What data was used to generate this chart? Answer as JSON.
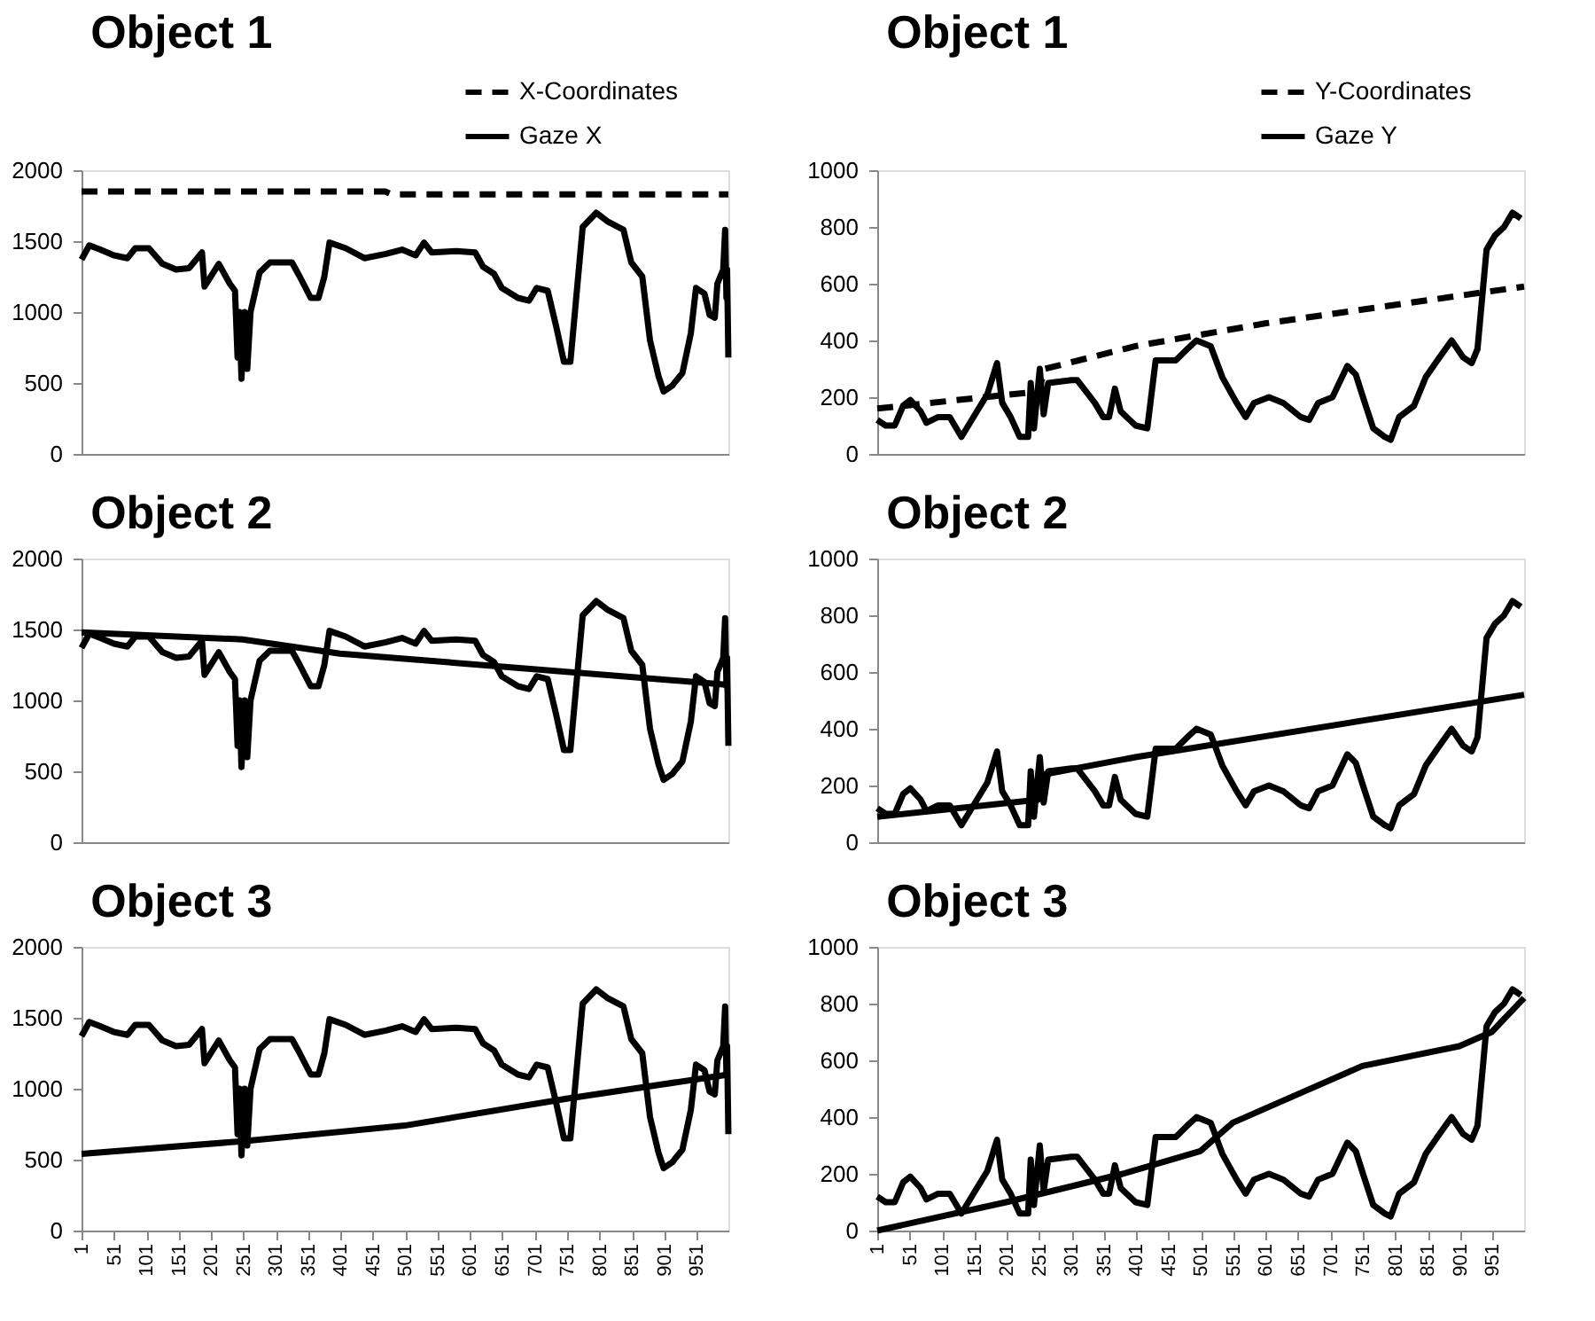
{
  "chart_data": [
    {
      "type": "line",
      "title": "Object 1",
      "xlim": [
        1,
        1000
      ],
      "xticks": [
        1,
        51,
        101,
        151,
        201,
        251,
        301,
        351,
        401,
        451,
        501,
        551,
        601,
        651,
        701,
        751,
        801,
        851,
        901,
        951
      ],
      "ylim": [
        0,
        2000
      ],
      "yticks": [
        0,
        500,
        1000,
        1500,
        2000
      ],
      "grid": false,
      "tick_labels": "y",
      "legend": "top right",
      "series": [
        {
          "name": "X-Coordinates",
          "color": "#000000",
          "line_style": "dashed",
          "x": [
            1,
            470,
            480,
            1000
          ],
          "values": [
            1850,
            1850,
            1830,
            1830
          ]
        },
        {
          "name": "Gaze X",
          "color": "#000000",
          "line_style": "solid",
          "x": [
            1,
            13,
            30,
            51,
            72,
            84,
            105,
            126,
            147,
            167,
            187,
            191,
            213,
            230,
            238,
            242,
            245,
            248,
            253,
            257,
            262,
            276,
            292,
            326,
            338,
            355,
            367,
            376,
            384,
            409,
            438,
            471,
            496,
            517,
            530,
            542,
            580,
            609,
            621,
            638,
            650,
            675,
            692,
            704,
            721,
            734,
            746,
            756,
            763,
            775,
            796,
            813,
            838,
            850,
            867,
            879,
            892,
            900,
            913,
            929,
            942,
            950,
            963,
            971,
            979,
            983,
            992,
            995,
            997,
            998,
            1000
          ],
          "values": [
            1370,
            1470,
            1440,
            1400,
            1380,
            1450,
            1450,
            1340,
            1300,
            1310,
            1420,
            1180,
            1340,
            1200,
            1150,
            680,
            1000,
            530,
            1000,
            600,
            1000,
            1280,
            1350,
            1350,
            1250,
            1100,
            1100,
            1250,
            1490,
            1450,
            1380,
            1410,
            1440,
            1400,
            1490,
            1420,
            1430,
            1420,
            1320,
            1270,
            1170,
            1100,
            1080,
            1170,
            1150,
            900,
            650,
            650,
            1000,
            1600,
            1700,
            1640,
            1580,
            1350,
            1250,
            800,
            550,
            440,
            480,
            570,
            850,
            1170,
            1130,
            980,
            960,
            1200,
            1300,
            1580,
            1100,
            1300,
            680
          ]
        }
      ]
    },
    {
      "type": "line",
      "title": "Object 1",
      "xlim": [
        1,
        1000
      ],
      "xticks": [
        1,
        51,
        101,
        151,
        201,
        251,
        301,
        351,
        401,
        451,
        501,
        551,
        601,
        651,
        701,
        751,
        801,
        851,
        901,
        951
      ],
      "ylim": [
        0,
        1000
      ],
      "yticks": [
        0,
        200,
        400,
        600,
        800,
        1000
      ],
      "grid": false,
      "tick_labels": "y",
      "legend": "top right",
      "series": [
        {
          "name": "Y-Coordinates",
          "color": "#000000",
          "line_style": "dashed",
          "x": [
            1,
            250,
            260,
            400,
            600,
            1000
          ],
          "values": [
            160,
            220,
            300,
            380,
            460,
            590
          ]
        },
        {
          "name": "Gaze Y",
          "color": "#000000",
          "line_style": "solid",
          "x": [
            1,
            14,
            28,
            41,
            52,
            68,
            77,
            95,
            113,
            131,
            171,
            186,
            194,
            207,
            221,
            234,
            238,
            243,
            252,
            258,
            265,
            301,
            310,
            337,
            350,
            359,
            368,
            377,
            400,
            418,
            431,
            462,
            480,
            494,
            516,
            534,
            556,
            570,
            583,
            606,
            628,
            655,
            668,
            682,
            704,
            727,
            740,
            754,
            767,
            785,
            794,
            807,
            830,
            848,
            866,
            888,
            906,
            919,
            928,
            942,
            955,
            969,
            982,
            995
          ],
          "values": [
            120,
            100,
            100,
            170,
            190,
            150,
            110,
            130,
            130,
            60,
            210,
            320,
            180,
            130,
            60,
            60,
            250,
            90,
            300,
            140,
            250,
            260,
            260,
            180,
            130,
            130,
            230,
            150,
            100,
            90,
            330,
            330,
            370,
            400,
            380,
            270,
            180,
            130,
            180,
            200,
            180,
            130,
            120,
            180,
            200,
            310,
            280,
            180,
            90,
            60,
            50,
            130,
            170,
            270,
            330,
            400,
            340,
            320,
            370,
            720,
            770,
            800,
            850,
            830
          ]
        }
      ]
    },
    {
      "type": "line",
      "title": "Object 2",
      "xlim": [
        1,
        1000
      ],
      "xticks": [
        1,
        51,
        101,
        151,
        201,
        251,
        301,
        351,
        401,
        451,
        501,
        551,
        601,
        651,
        701,
        751,
        801,
        851,
        901,
        951
      ],
      "ylim": [
        0,
        2000
      ],
      "yticks": [
        0,
        500,
        1000,
        1500,
        2000
      ],
      "grid": false,
      "tick_labels": "y",
      "series": [
        {
          "color": "#000000",
          "line_style": "solid",
          "x": [
            1,
            250,
            400,
            1000
          ],
          "values": [
            1480,
            1430,
            1330,
            1110
          ]
        },
        {
          "color": "#000000",
          "line_style": "solid",
          "x": [
            1,
            13,
            30,
            51,
            72,
            84,
            105,
            126,
            147,
            167,
            187,
            191,
            213,
            230,
            238,
            242,
            245,
            248,
            253,
            257,
            262,
            276,
            292,
            326,
            338,
            355,
            367,
            376,
            384,
            409,
            438,
            471,
            496,
            517,
            530,
            542,
            580,
            609,
            621,
            638,
            650,
            675,
            692,
            704,
            721,
            734,
            746,
            756,
            763,
            775,
            796,
            813,
            838,
            850,
            867,
            879,
            892,
            900,
            913,
            929,
            942,
            950,
            963,
            971,
            979,
            983,
            992,
            995,
            997,
            998,
            1000
          ],
          "values": [
            1370,
            1470,
            1440,
            1400,
            1380,
            1450,
            1450,
            1340,
            1300,
            1310,
            1420,
            1180,
            1340,
            1200,
            1150,
            680,
            1000,
            530,
            1000,
            600,
            1000,
            1280,
            1350,
            1350,
            1250,
            1100,
            1100,
            1250,
            1490,
            1450,
            1380,
            1410,
            1440,
            1400,
            1490,
            1420,
            1430,
            1420,
            1320,
            1270,
            1170,
            1100,
            1080,
            1170,
            1150,
            900,
            650,
            650,
            1000,
            1600,
            1700,
            1640,
            1580,
            1350,
            1250,
            800,
            550,
            440,
            480,
            570,
            850,
            1170,
            1130,
            980,
            960,
            1200,
            1300,
            1580,
            1100,
            1300,
            680
          ]
        }
      ]
    },
    {
      "type": "line",
      "title": "Object 2",
      "xlim": [
        1,
        1000
      ],
      "xticks": [
        1,
        51,
        101,
        151,
        201,
        251,
        301,
        351,
        401,
        451,
        501,
        551,
        601,
        651,
        701,
        751,
        801,
        851,
        901,
        951
      ],
      "ylim": [
        0,
        1000
      ],
      "yticks": [
        0,
        200,
        400,
        600,
        800,
        1000
      ],
      "grid": false,
      "tick_labels": "y",
      "series": [
        {
          "color": "#000000",
          "line_style": "solid",
          "x": [
            1,
            250,
            260,
            400,
            1000
          ],
          "values": [
            90,
            150,
            240,
            300,
            520
          ]
        },
        {
          "color": "#000000",
          "line_style": "solid",
          "x": [
            1,
            14,
            28,
            41,
            52,
            68,
            77,
            95,
            113,
            131,
            171,
            186,
            194,
            207,
            221,
            234,
            238,
            243,
            252,
            258,
            265,
            301,
            310,
            337,
            350,
            359,
            368,
            377,
            400,
            418,
            431,
            462,
            480,
            494,
            516,
            534,
            556,
            570,
            583,
            606,
            628,
            655,
            668,
            682,
            704,
            727,
            740,
            754,
            767,
            785,
            794,
            807,
            830,
            848,
            866,
            888,
            906,
            919,
            928,
            942,
            955,
            969,
            982,
            995
          ],
          "values": [
            120,
            100,
            100,
            170,
            190,
            150,
            110,
            130,
            130,
            60,
            210,
            320,
            180,
            130,
            60,
            60,
            250,
            90,
            300,
            140,
            250,
            260,
            260,
            180,
            130,
            130,
            230,
            150,
            100,
            90,
            330,
            330,
            370,
            400,
            380,
            270,
            180,
            130,
            180,
            200,
            180,
            130,
            120,
            180,
            200,
            310,
            280,
            180,
            90,
            60,
            50,
            130,
            170,
            270,
            330,
            400,
            340,
            320,
            370,
            720,
            770,
            800,
            850,
            830
          ]
        }
      ]
    },
    {
      "type": "line",
      "title": "Object 3",
      "xlim": [
        1,
        1000
      ],
      "xticks": [
        1,
        51,
        101,
        151,
        201,
        251,
        301,
        351,
        401,
        451,
        501,
        551,
        601,
        651,
        701,
        751,
        801,
        851,
        901,
        951
      ],
      "ylim": [
        0,
        2000
      ],
      "yticks": [
        0,
        500,
        1000,
        1500,
        2000
      ],
      "grid": false,
      "series": [
        {
          "color": "#000000",
          "line_style": "solid",
          "x": [
            1,
            250,
            500,
            750,
            1000
          ],
          "values": [
            540,
            630,
            740,
            930,
            1100
          ]
        },
        {
          "color": "#000000",
          "line_style": "solid",
          "x": [
            1,
            13,
            30,
            51,
            72,
            84,
            105,
            126,
            147,
            167,
            187,
            191,
            213,
            230,
            238,
            242,
            245,
            248,
            253,
            257,
            262,
            276,
            292,
            326,
            338,
            355,
            367,
            376,
            384,
            409,
            438,
            471,
            496,
            517,
            530,
            542,
            580,
            609,
            621,
            638,
            650,
            675,
            692,
            704,
            721,
            734,
            746,
            756,
            763,
            775,
            796,
            813,
            838,
            850,
            867,
            879,
            892,
            900,
            913,
            929,
            942,
            950,
            963,
            971,
            979,
            983,
            992,
            995,
            997,
            998,
            1000
          ],
          "values": [
            1370,
            1470,
            1440,
            1400,
            1380,
            1450,
            1450,
            1340,
            1300,
            1310,
            1420,
            1180,
            1340,
            1200,
            1150,
            680,
            1000,
            530,
            1000,
            600,
            1000,
            1280,
            1350,
            1350,
            1250,
            1100,
            1100,
            1250,
            1490,
            1450,
            1380,
            1410,
            1440,
            1400,
            1490,
            1420,
            1430,
            1420,
            1320,
            1270,
            1170,
            1100,
            1080,
            1170,
            1150,
            900,
            650,
            650,
            1000,
            1600,
            1700,
            1640,
            1580,
            1350,
            1250,
            800,
            550,
            440,
            480,
            570,
            850,
            1170,
            1130,
            980,
            960,
            1200,
            1300,
            1580,
            1100,
            1300,
            680
          ]
        }
      ]
    },
    {
      "type": "line",
      "title": "Object 3",
      "xlim": [
        1,
        1000
      ],
      "xticks": [
        1,
        51,
        101,
        151,
        201,
        251,
        301,
        351,
        401,
        451,
        501,
        551,
        601,
        651,
        701,
        751,
        801,
        851,
        901,
        951
      ],
      "ylim": [
        0,
        1000
      ],
      "yticks": [
        0,
        200,
        400,
        600,
        800,
        1000
      ],
      "grid": false,
      "series": [
        {
          "color": "#000000",
          "line_style": "solid",
          "x": [
            1,
            200,
            380,
            500,
            550,
            650,
            750,
            900,
            950,
            1000
          ],
          "values": [
            0,
            100,
            200,
            280,
            380,
            480,
            580,
            650,
            700,
            820
          ]
        },
        {
          "color": "#000000",
          "line_style": "solid",
          "x": [
            1,
            14,
            28,
            41,
            52,
            68,
            77,
            95,
            113,
            131,
            171,
            186,
            194,
            207,
            221,
            234,
            238,
            243,
            252,
            258,
            265,
            301,
            310,
            337,
            350,
            359,
            368,
            377,
            400,
            418,
            431,
            462,
            480,
            494,
            516,
            534,
            556,
            570,
            583,
            606,
            628,
            655,
            668,
            682,
            704,
            727,
            740,
            754,
            767,
            785,
            794,
            807,
            830,
            848,
            866,
            888,
            906,
            919,
            928,
            942,
            955,
            969,
            982,
            995
          ],
          "values": [
            120,
            100,
            100,
            170,
            190,
            150,
            110,
            130,
            130,
            60,
            210,
            320,
            180,
            130,
            60,
            60,
            250,
            90,
            300,
            140,
            250,
            260,
            260,
            180,
            130,
            130,
            230,
            150,
            100,
            90,
            330,
            330,
            370,
            400,
            380,
            270,
            180,
            130,
            180,
            200,
            180,
            130,
            120,
            180,
            200,
            310,
            280,
            180,
            90,
            60,
            50,
            130,
            170,
            270,
            330,
            400,
            340,
            320,
            370,
            720,
            770,
            800,
            850,
            830
          ]
        }
      ]
    }
  ]
}
